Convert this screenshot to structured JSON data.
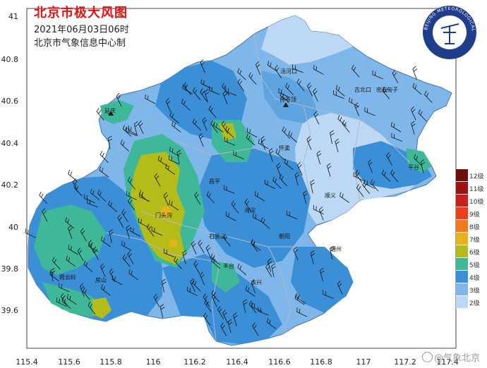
{
  "title": "北京市极大风图",
  "datetime": "2021年06月03日06时",
  "org": "北京市气象信息中心制",
  "logo_text": "BEIJING METEOROLOGICAL SERVICE",
  "watermark": "@气象北京",
  "y_ticks": [
    "41",
    "40.8",
    "40.6",
    "40.4",
    "40.2",
    "40",
    "39.8",
    "39.6"
  ],
  "x_ticks": [
    "115.4",
    "115.6",
    "115.8",
    "116",
    "116.2",
    "116.4",
    "116.6",
    "116.8",
    "117",
    "117.2",
    "117.4"
  ],
  "stations": [
    "汤河口",
    "延庆",
    "怀柔",
    "密云",
    "上甸子",
    "昌平",
    "顺义",
    "平谷",
    "海淀",
    "朝阳",
    "门头沟",
    "石景山",
    "丰台",
    "通州",
    "房山",
    "霞云岭",
    "大兴",
    "古北口",
    "佛爷顶"
  ],
  "legend": [
    {
      "label": "12级",
      "color": "#6b0f0f"
    },
    {
      "label": "11级",
      "color": "#9a1212"
    },
    {
      "label": "10级",
      "color": "#c8201c"
    },
    {
      "label": "9级",
      "color": "#e8401e"
    },
    {
      "label": "8级",
      "color": "#f07a1c"
    },
    {
      "label": "7级",
      "color": "#e8b21c"
    },
    {
      "label": "6级",
      "color": "#b4bc1a"
    },
    {
      "label": "5级",
      "color": "#3fb89a"
    },
    {
      "label": "4级",
      "color": "#3a8fd6"
    },
    {
      "label": "3级",
      "color": "#7fb7ea"
    },
    {
      "label": "2级",
      "color": "#bcd8f4"
    }
  ]
}
